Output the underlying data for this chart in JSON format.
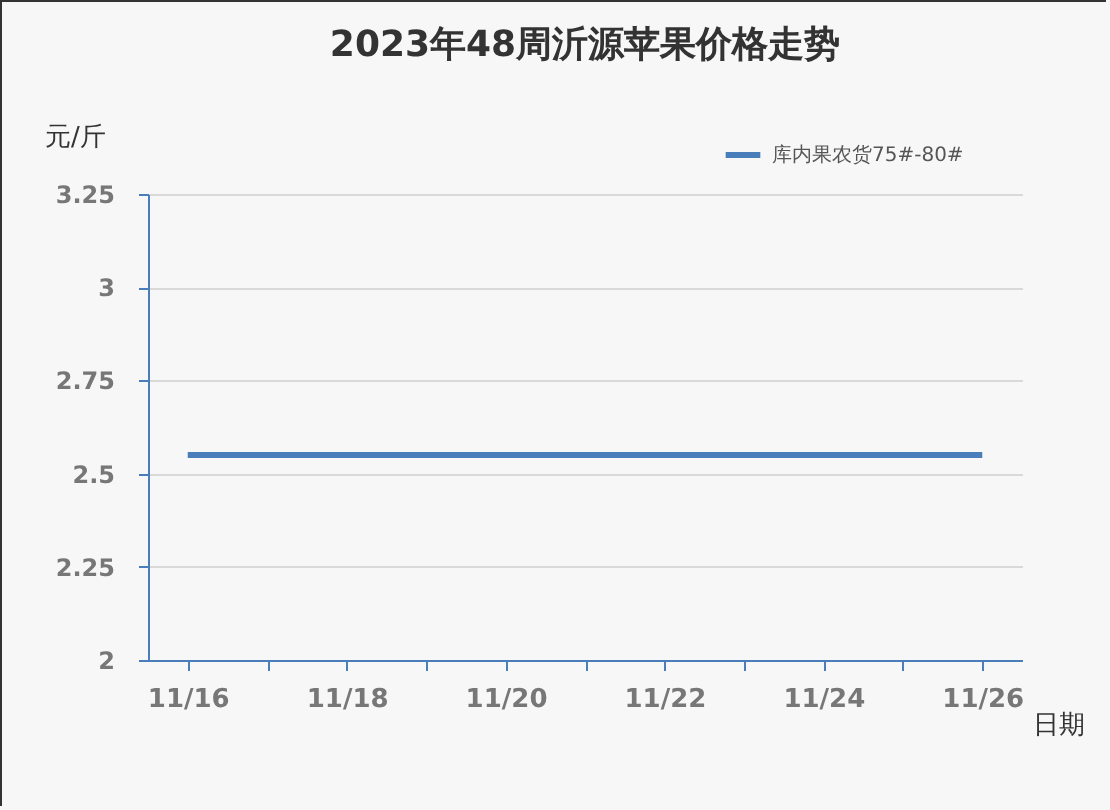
{
  "chart_data": {
    "type": "line",
    "title": "2023年48周沂源苹果价格走势",
    "xlabel": "日期",
    "ylabel": "元/斤",
    "categories": [
      "11/16",
      null,
      "11/18",
      null,
      "11/20",
      null,
      "11/22",
      null,
      "11/24",
      null,
      "11/26"
    ],
    "series": [
      {
        "name": "库内果农货75#-80#",
        "color": "#4a7ebb",
        "values": [
          2.55,
          2.55,
          2.55,
          2.55,
          2.55,
          2.55,
          2.55,
          2.55,
          2.55,
          2.55,
          2.55
        ]
      }
    ],
    "ylim": [
      2,
      3.25
    ],
    "yticks": [
      2,
      2.25,
      2.5,
      2.75,
      3,
      3.25
    ],
    "grid": "y",
    "legend": "top right",
    "marker": "none",
    "line_style": "solid"
  }
}
